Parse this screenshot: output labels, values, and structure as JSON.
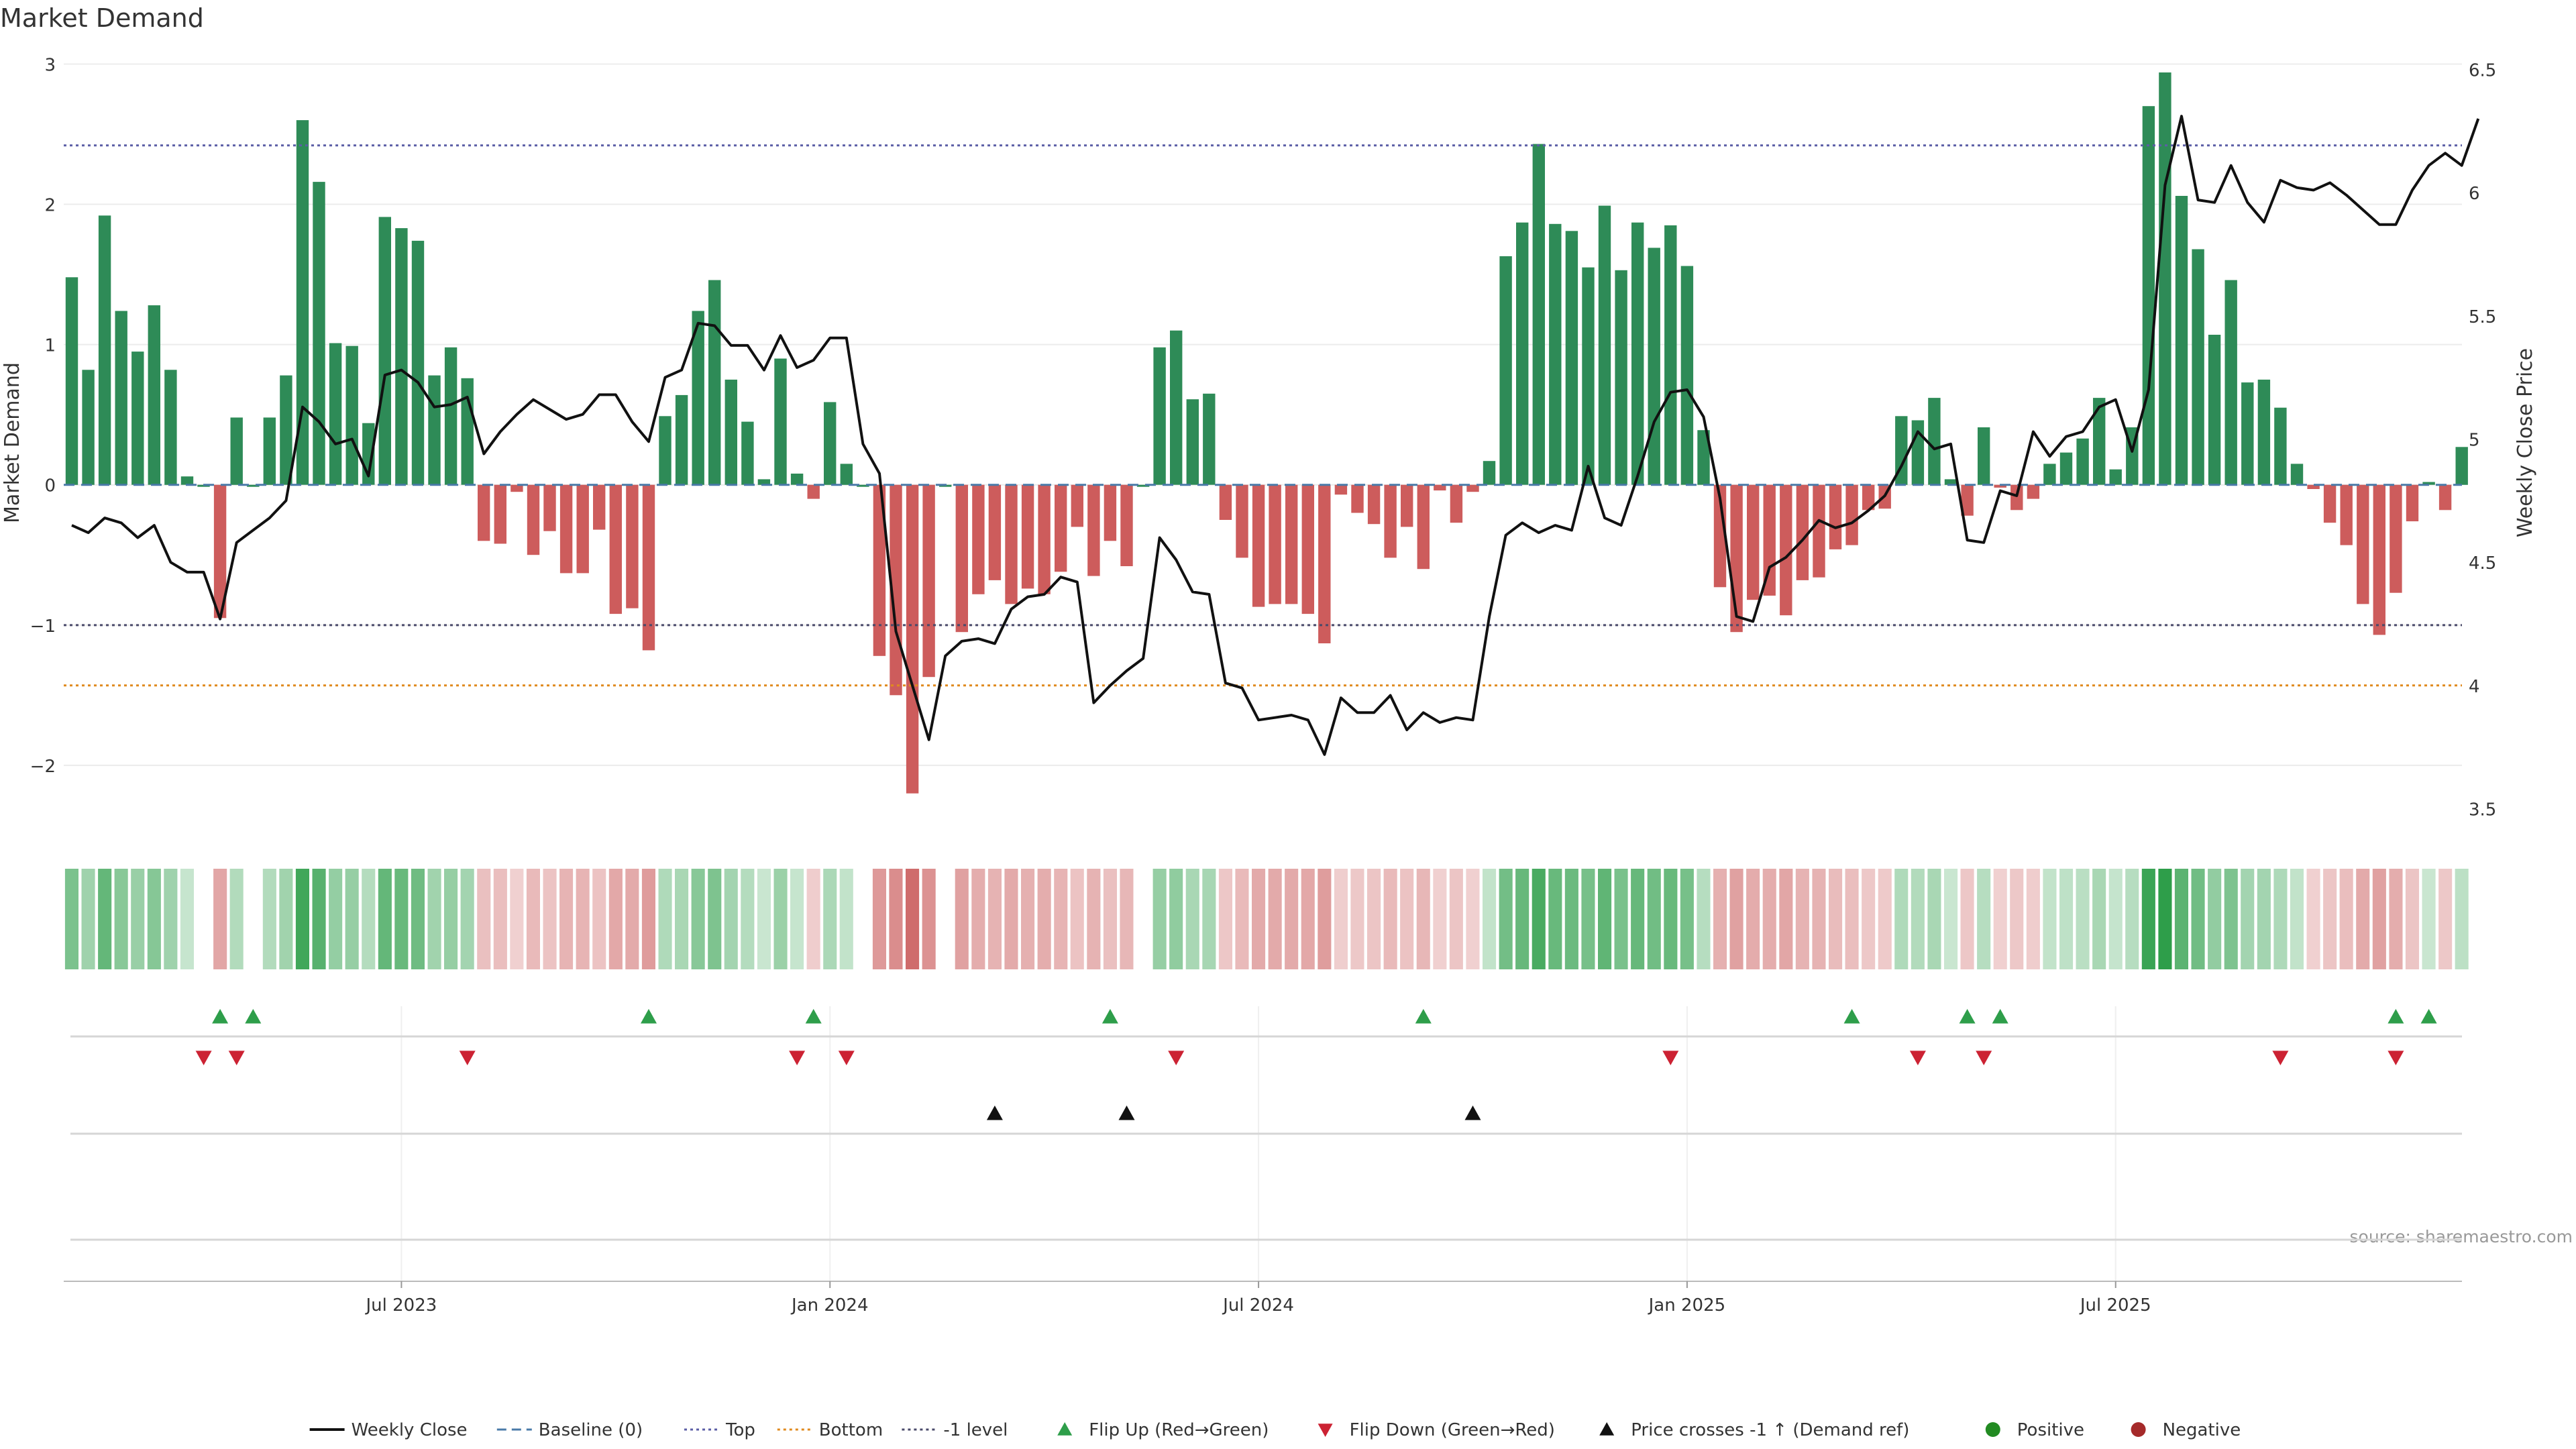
{
  "chart_data": {
    "type": "bar",
    "title": "Market Demand",
    "ylabel": "Market Demand",
    "y2label": "Weekly Close Price",
    "ylim": [
      -2.45,
      3.05
    ],
    "y2lim": [
      3.42,
      6.55
    ],
    "yticks": [
      {
        "value": 3,
        "label": "3"
      },
      {
        "value": 2,
        "label": "2"
      },
      {
        "value": 1,
        "label": "1"
      },
      {
        "value": 0,
        "label": "0"
      },
      {
        "value": -1,
        "label": "−1"
      },
      {
        "value": -2,
        "label": "−2"
      }
    ],
    "y2ticks": [
      {
        "value": 6.5,
        "label": "6.5"
      },
      {
        "value": 6,
        "label": "6"
      },
      {
        "value": 5.5,
        "label": "5.5"
      },
      {
        "value": 5,
        "label": "5"
      },
      {
        "value": 4.5,
        "label": "4.5"
      },
      {
        "value": 4,
        "label": "4"
      },
      {
        "value": 3.5,
        "label": "3.5"
      }
    ],
    "xticks": [
      {
        "index": 20,
        "label": "Jul 2023"
      },
      {
        "index": 46,
        "label": "Jan 2024"
      },
      {
        "index": 72,
        "label": "Jul 2024"
      },
      {
        "index": 98,
        "label": "Jan 2025"
      },
      {
        "index": 124,
        "label": "Jul 2025"
      }
    ],
    "reference_lines": [
      {
        "name": "top",
        "value": 2.42,
        "color": "#5b5ea6",
        "dash": "dotted"
      },
      {
        "name": "minus-one",
        "value": -1,
        "color": "#4a4a6a",
        "dash": "dotted"
      },
      {
        "name": "bottom",
        "value": -1.43,
        "color": "#e08a1e",
        "dash": "dotted"
      },
      {
        "name": "baseline",
        "value": 0,
        "color": "#4a7aa8",
        "dash": "dashed"
      }
    ],
    "demand": [
      1.48,
      0.82,
      1.92,
      1.24,
      0.95,
      1.28,
      0.82,
      0.06,
      0,
      -0.95,
      0.48,
      0,
      0.48,
      0.78,
      2.6,
      2.16,
      1.01,
      0.99,
      0.44,
      1.91,
      1.83,
      1.74,
      0.78,
      0.98,
      0.76,
      -0.4,
      -0.42,
      -0.05,
      -0.5,
      -0.33,
      -0.63,
      -0.63,
      -0.32,
      -0.92,
      -0.88,
      -1.18,
      0.49,
      0.64,
      1.24,
      1.46,
      0.75,
      0.45,
      0.04,
      0.9,
      0.08,
      -0.1,
      0.59,
      0.15,
      0,
      -1.22,
      -1.5,
      -2.2,
      -1.37,
      0,
      -1.05,
      -0.78,
      -0.68,
      -0.85,
      -0.74,
      -0.78,
      -0.62,
      -0.3,
      -0.65,
      -0.4,
      -0.58,
      0,
      0.98,
      1.1,
      0.61,
      0.65,
      -0.25,
      -0.52,
      -0.87,
      -0.85,
      -0.85,
      -0.92,
      -1.13,
      -0.07,
      -0.2,
      -0.28,
      -0.52,
      -0.3,
      -0.6,
      -0.04,
      -0.27,
      -0.05,
      0.17,
      1.63,
      1.87,
      2.43,
      1.86,
      1.81,
      1.55,
      1.99,
      1.53,
      1.87,
      1.69,
      1.85,
      1.56,
      0.39,
      -0.73,
      -1.05,
      -0.82,
      -0.79,
      -0.93,
      -0.68,
      -0.66,
      -0.46,
      -0.43,
      -0.18,
      -0.17,
      0.49,
      0.46,
      0.62,
      0.04,
      -0.22,
      0.41,
      -0.02,
      -0.18,
      -0.1,
      0.15,
      0.23,
      0.33,
      0.62,
      0.11,
      0.41,
      2.7,
      2.94,
      2.06,
      1.68,
      1.07,
      1.46,
      0.73,
      0.75,
      0.55,
      0.15,
      -0.03,
      -0.27,
      -0.43,
      -0.85,
      -1.07,
      -0.77,
      -0.26,
      0.02,
      -0.18,
      0.27
    ],
    "weekly_close": [
      4.65,
      4.62,
      4.68,
      4.66,
      4.6,
      4.65,
      4.5,
      4.46,
      4.46,
      4.27,
      4.58,
      4.63,
      4.68,
      4.75,
      5.13,
      5.07,
      4.98,
      5.0,
      4.85,
      5.26,
      5.28,
      5.23,
      5.13,
      5.14,
      5.17,
      4.94,
      5.03,
      5.1,
      5.16,
      5.12,
      5.08,
      5.1,
      5.18,
      5.18,
      5.07,
      4.99,
      5.25,
      5.28,
      5.47,
      5.46,
      5.38,
      5.38,
      5.28,
      5.42,
      5.29,
      5.32,
      5.41,
      5.41,
      4.98,
      4.86,
      4.22,
      4.0,
      3.78,
      4.12,
      4.18,
      4.19,
      4.17,
      4.31,
      4.36,
      4.37,
      4.44,
      4.42,
      3.93,
      4.0,
      4.06,
      4.11,
      4.6,
      4.51,
      4.38,
      4.37,
      4.01,
      3.99,
      3.86,
      3.87,
      3.88,
      3.86,
      3.72,
      3.95,
      3.89,
      3.89,
      3.96,
      3.82,
      3.89,
      3.85,
      3.87,
      3.86,
      4.28,
      4.61,
      4.66,
      4.62,
      4.65,
      4.63,
      4.89,
      4.68,
      4.65,
      4.85,
      5.07,
      5.19,
      5.2,
      5.09,
      4.76,
      4.28,
      4.26,
      4.48,
      4.52,
      4.59,
      4.67,
      4.64,
      4.66,
      4.71,
      4.77,
      4.89,
      5.03,
      4.96,
      4.98,
      4.59,
      4.58,
      4.79,
      4.77,
      5.03,
      4.93,
      5.01,
      5.03,
      5.13,
      5.16,
      4.95,
      5.2,
      6.03,
      6.31,
      5.97,
      5.96,
      6.11,
      5.96,
      5.88,
      6.05,
      6.02,
      6.01,
      6.04,
      5.99,
      5.93,
      5.87,
      5.87,
      6.01,
      6.11,
      6.16,
      6.11,
      6.3
    ],
    "markers": {
      "flip_up": [
        9,
        11,
        35,
        45,
        63,
        82,
        108,
        115,
        117,
        141,
        143
      ],
      "flip_down": [
        8,
        10,
        24,
        44,
        47,
        67,
        97,
        112,
        116,
        134,
        141
      ],
      "price_crosses": [
        56,
        64,
        85
      ]
    },
    "colors": {
      "positive": "#2e8b57",
      "negative": "#cd5c5c",
      "close_line": "#111111",
      "flip_up": "#2e9e4a",
      "flip_down": "#cc2233",
      "cross": "#111111"
    },
    "source": "source: sharemaestro.com",
    "legend": {
      "placement": "bottom-center",
      "items": [
        {
          "label": "Weekly Close",
          "kind": "line",
          "color": "#111111"
        },
        {
          "label": "Baseline (0)",
          "kind": "dash",
          "color": "#4a7aa8"
        },
        {
          "label": "Top",
          "kind": "dot",
          "color": "#5b5ea6"
        },
        {
          "label": "Bottom",
          "kind": "dot",
          "color": "#e08a1e"
        },
        {
          "label": "-1 level",
          "kind": "dot",
          "color": "#4a4a6a"
        },
        {
          "label": "Flip Up (Red→Green)",
          "kind": "tri-up",
          "color": "#2e9e4a"
        },
        {
          "label": "Flip Down (Green→Red)",
          "kind": "tri-down",
          "color": "#cc2233"
        },
        {
          "label": "Price crosses -1 ↑ (Demand ref)",
          "kind": "tri-up",
          "color": "#111111"
        },
        {
          "label": "Positive",
          "kind": "circle",
          "color": "#228b22"
        },
        {
          "label": "Negative",
          "kind": "circle",
          "color": "#a52a2a"
        }
      ]
    }
  }
}
